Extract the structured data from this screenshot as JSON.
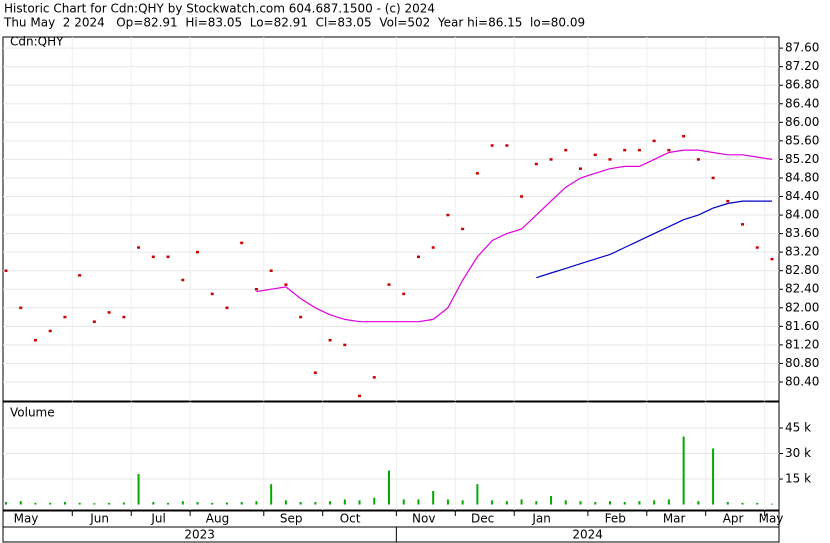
{
  "chart_data": [
    {
      "type": "line",
      "title": "Historic Chart for Cdn:QHY by Stockwatch.com 604.687.1500 - (c) 2024",
      "subtitle": "Thu May  2 2024   Op=82.91  Hi=83.05  Lo=82.91  Cl=83.05  Vol=502  Year hi=86.15  lo=80.09",
      "categories": [
        "May",
        null,
        null,
        null,
        null,
        "Jun",
        null,
        null,
        null,
        "Jul",
        null,
        null,
        null,
        "Aug",
        null,
        null,
        null,
        null,
        "Sep",
        null,
        null,
        null,
        "Oct",
        null,
        null,
        null,
        null,
        "Nov",
        null,
        null,
        null,
        "Dec",
        null,
        null,
        null,
        "Jan",
        null,
        null,
        null,
        null,
        "Feb",
        null,
        null,
        null,
        "Mar",
        null,
        null,
        null,
        "Apr",
        null,
        null,
        null,
        "May"
      ],
      "year_labels": [
        "2023",
        "2024"
      ],
      "series": [
        {
          "name": "Cdn:QHY",
          "color": "#cc0000",
          "style": "tick",
          "values": [
            82.8,
            82.0,
            81.3,
            81.5,
            81.8,
            82.7,
            81.7,
            81.9,
            81.8,
            83.3,
            83.1,
            83.1,
            82.6,
            83.2,
            82.3,
            82.0,
            83.4,
            82.4,
            82.8,
            82.5,
            81.8,
            80.6,
            81.3,
            81.2,
            80.1,
            80.5,
            82.5,
            82.3,
            83.1,
            83.3,
            84.0,
            83.7,
            84.9,
            85.5,
            85.5,
            84.4,
            85.1,
            85.2,
            85.4,
            85.0,
            85.3,
            85.2,
            85.4,
            85.4,
            85.6,
            85.4,
            85.7,
            85.2,
            84.8,
            84.3,
            83.8,
            83.3,
            83.05
          ]
        },
        {
          "color": "#e000e0",
          "style": "line",
          "values": [
            null,
            null,
            null,
            null,
            null,
            null,
            null,
            null,
            null,
            null,
            null,
            null,
            null,
            null,
            null,
            null,
            null,
            82.35,
            82.4,
            82.45,
            82.2,
            82.0,
            81.85,
            81.75,
            81.7,
            81.7,
            81.7,
            81.7,
            81.7,
            81.75,
            82.0,
            82.6,
            83.1,
            83.45,
            83.6,
            83.7,
            84.0,
            84.3,
            84.6,
            84.8,
            84.9,
            85.0,
            85.05,
            85.05,
            85.2,
            85.35,
            85.4,
            85.4,
            85.35,
            85.3,
            85.3,
            85.25,
            85.2
          ]
        },
        {
          "color": "#0000c8",
          "style": "line",
          "values": [
            null,
            null,
            null,
            null,
            null,
            null,
            null,
            null,
            null,
            null,
            null,
            null,
            null,
            null,
            null,
            null,
            null,
            null,
            null,
            null,
            null,
            null,
            null,
            null,
            null,
            null,
            null,
            null,
            null,
            null,
            null,
            null,
            null,
            null,
            null,
            null,
            82.65,
            82.75,
            82.85,
            82.95,
            83.05,
            83.15,
            83.3,
            83.45,
            83.6,
            83.75,
            83.9,
            84.0,
            84.15,
            84.25,
            84.3,
            84.3,
            84.3
          ]
        }
      ],
      "ylim": [
        79.99,
        87.84
      ],
      "yticks": [
        {
          "value": 87.6,
          "label": "87.60"
        },
        {
          "value": 87.2,
          "label": "87.20"
        },
        {
          "value": 86.8,
          "label": "86.80"
        },
        {
          "value": 86.4,
          "label": "86.40"
        },
        {
          "value": 86.0,
          "label": "86.00"
        },
        {
          "value": 85.6,
          "label": "85.60"
        },
        {
          "value": 85.2,
          "label": "85.20"
        },
        {
          "value": 84.8,
          "label": "84.80"
        },
        {
          "value": 84.4,
          "label": "84.40"
        },
        {
          "value": 84.0,
          "label": "84.00"
        },
        {
          "value": 83.6,
          "label": "83.60"
        },
        {
          "value": 83.2,
          "label": "83.20"
        },
        {
          "value": 82.8,
          "label": "82.80"
        },
        {
          "value": 82.4,
          "label": "82.40"
        },
        {
          "value": 82.0,
          "label": "82.00"
        },
        {
          "value": 81.6,
          "label": "81.60"
        },
        {
          "value": 81.2,
          "label": "81.20"
        },
        {
          "value": 80.8,
          "label": "80.80"
        },
        {
          "value": 80.4,
          "label": "80.40"
        }
      ],
      "grid": true
    },
    {
      "type": "bar",
      "title": "Volume",
      "color": "#00aa00",
      "values": [
        1500,
        2000,
        1000,
        1000,
        1500,
        1000,
        800,
        1000,
        1200,
        18000,
        1500,
        1000,
        2000,
        1500,
        1000,
        1200,
        1500,
        2000,
        12000,
        2500,
        1500,
        1500,
        2000,
        3000,
        2500,
        4000,
        20000,
        3000,
        3000,
        8000,
        3000,
        2500,
        12000,
        2500,
        2000,
        3000,
        2000,
        5000,
        2500,
        2000,
        1500,
        2000,
        1500,
        2000,
        2500,
        3000,
        40000,
        2000,
        33000,
        1500,
        1000,
        1000,
        502
      ],
      "ylim": [
        -3200,
        60300
      ],
      "yticks": [
        {
          "value": 45000,
          "label": "45 k"
        },
        {
          "value": 30000,
          "label": "30 k"
        },
        {
          "value": 15000,
          "label": "15 k"
        }
      ],
      "grid": true
    }
  ]
}
